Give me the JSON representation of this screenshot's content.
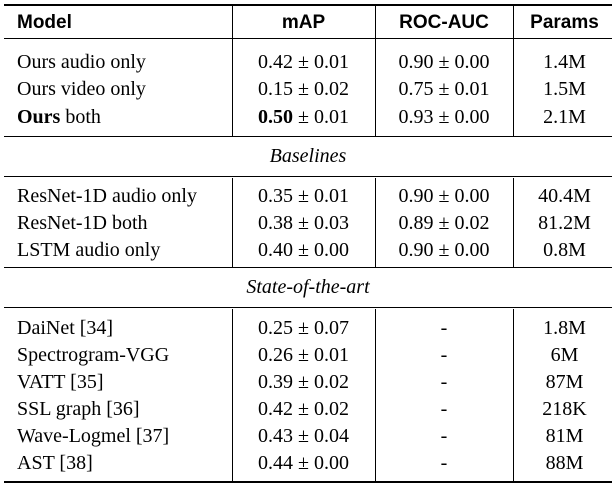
{
  "table": {
    "headers": [
      "Model",
      "mAP",
      "ROC-AUC",
      "Params"
    ],
    "groups": [
      {
        "title": "",
        "rows": [
          {
            "model_bold": "",
            "model": "Ours audio only",
            "map_bold": "",
            "map": "0.42 ± 0.01",
            "roc": "0.90 ± 0.00",
            "params": "1.4M"
          },
          {
            "model_bold": "",
            "model": "Ours video only",
            "map_bold": "",
            "map": "0.15 ± 0.02",
            "roc": "0.75 ± 0.01",
            "params": "1.5M"
          },
          {
            "model_bold": "Ours",
            "model": " both",
            "map_bold": "0.50",
            "map": " ± 0.01",
            "roc": "0.93 ± 0.00",
            "params": "2.1M"
          }
        ]
      },
      {
        "title": "Baselines",
        "rows": [
          {
            "model_bold": "",
            "model": "ResNet-1D audio only",
            "map_bold": "",
            "map": "0.35 ± 0.01",
            "roc": "0.90 ± 0.00",
            "params": "40.4M"
          },
          {
            "model_bold": "",
            "model": "ResNet-1D both",
            "map_bold": "",
            "map": "0.38 ± 0.03",
            "roc": "0.89 ± 0.02",
            "params": "81.2M"
          },
          {
            "model_bold": "",
            "model": "LSTM audio only",
            "map_bold": "",
            "map": "0.40 ± 0.00",
            "roc": "0.90 ± 0.00",
            "params": "0.8M"
          }
        ]
      },
      {
        "title": "State-of-the-art",
        "rows": [
          {
            "model_bold": "",
            "model": "DaiNet [34]",
            "map_bold": "",
            "map": "0.25 ± 0.07",
            "roc": "-",
            "params": "1.8M"
          },
          {
            "model_bold": "",
            "model": "Spectrogram-VGG",
            "map_bold": "",
            "map": "0.26 ± 0.01",
            "roc": "-",
            "params": "6M"
          },
          {
            "model_bold": "",
            "model": "VATT [35]",
            "map_bold": "",
            "map": "0.39 ± 0.02",
            "roc": "-",
            "params": "87M"
          },
          {
            "model_bold": "",
            "model": "SSL graph [36]",
            "map_bold": "",
            "map": "0.42 ± 0.02",
            "roc": "-",
            "params": "218K"
          },
          {
            "model_bold": "",
            "model": "Wave-Logmel [37]",
            "map_bold": "",
            "map": "0.43 ± 0.04",
            "roc": "-",
            "params": "81M"
          },
          {
            "model_bold": "",
            "model": "AST [38]",
            "map_bold": "",
            "map": "0.44 ± 0.00",
            "roc": "-",
            "params": "88M"
          }
        ]
      }
    ]
  }
}
